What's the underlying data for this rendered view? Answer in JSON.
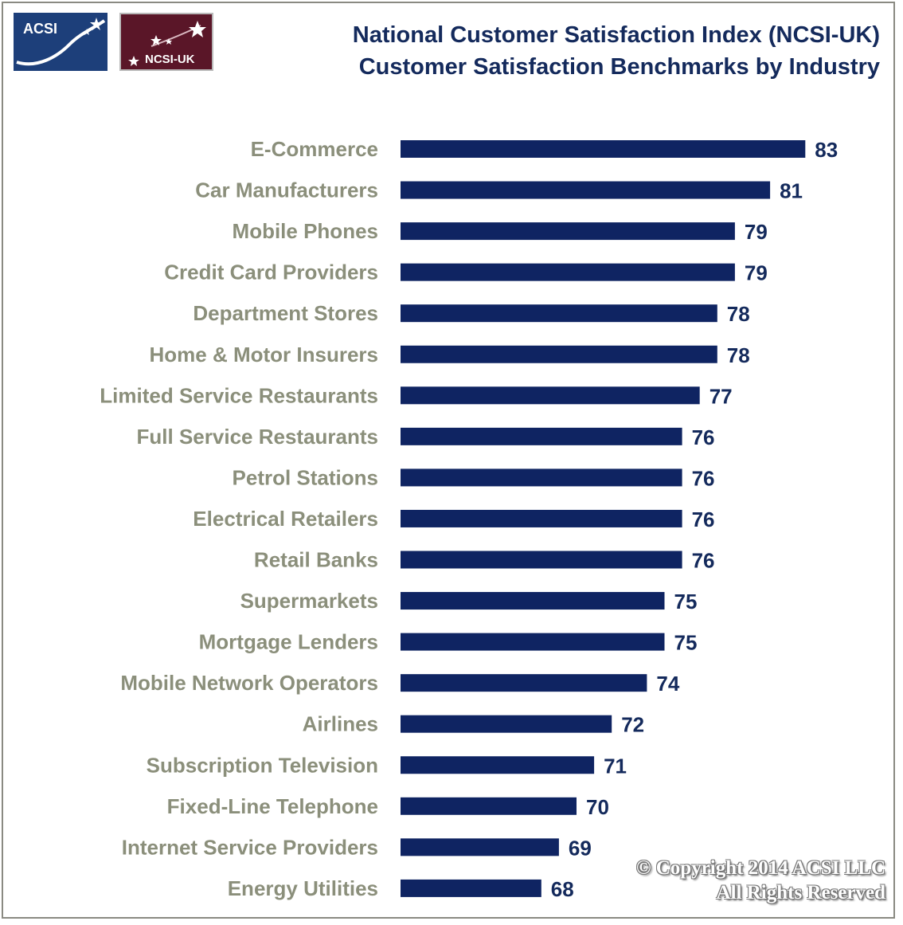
{
  "logos": {
    "acsi": "ACSI",
    "ncsi": "NCSI-UK"
  },
  "title": {
    "line1": "National Customer Satisfaction Index (NCSI-UK)",
    "line2": "Customer Satisfaction Benchmarks by Industry"
  },
  "colors": {
    "bar": "#0f2462",
    "title": "#142a5c",
    "category_label": "#8b8f7b",
    "value_label": "#142a5c",
    "acsi_logo_bg": "#1d3f7a",
    "ncsi_logo_bg": "#5a1628"
  },
  "chart_data": {
    "type": "bar",
    "orientation": "horizontal",
    "title": "National Customer Satisfaction Index (NCSI-UK) Customer Satisfaction Benchmarks by Industry",
    "categories": [
      "E-Commerce",
      "Car Manufacturers",
      "Mobile Phones",
      "Credit Card Providers",
      "Department Stores",
      "Home & Motor Insurers",
      "Limited Service Restaurants",
      "Full Service Restaurants",
      "Petrol Stations",
      "Electrical Retailers",
      "Retail Banks",
      "Supermarkets",
      "Mortgage Lenders",
      "Mobile Network Operators",
      "Airlines",
      "Subscription Television",
      "Fixed-Line Telephone",
      "Internet Service Providers",
      "Energy Utilities"
    ],
    "values": [
      83,
      81,
      79,
      79,
      78,
      78,
      77,
      76,
      76,
      76,
      76,
      75,
      75,
      74,
      72,
      71,
      70,
      69,
      68
    ],
    "xlim": [
      60,
      83
    ],
    "grid": false,
    "data_labels": true
  },
  "copyright": {
    "line1": "© Copyright 2014 ACSI LLC",
    "line2": "All Rights Reserved"
  }
}
